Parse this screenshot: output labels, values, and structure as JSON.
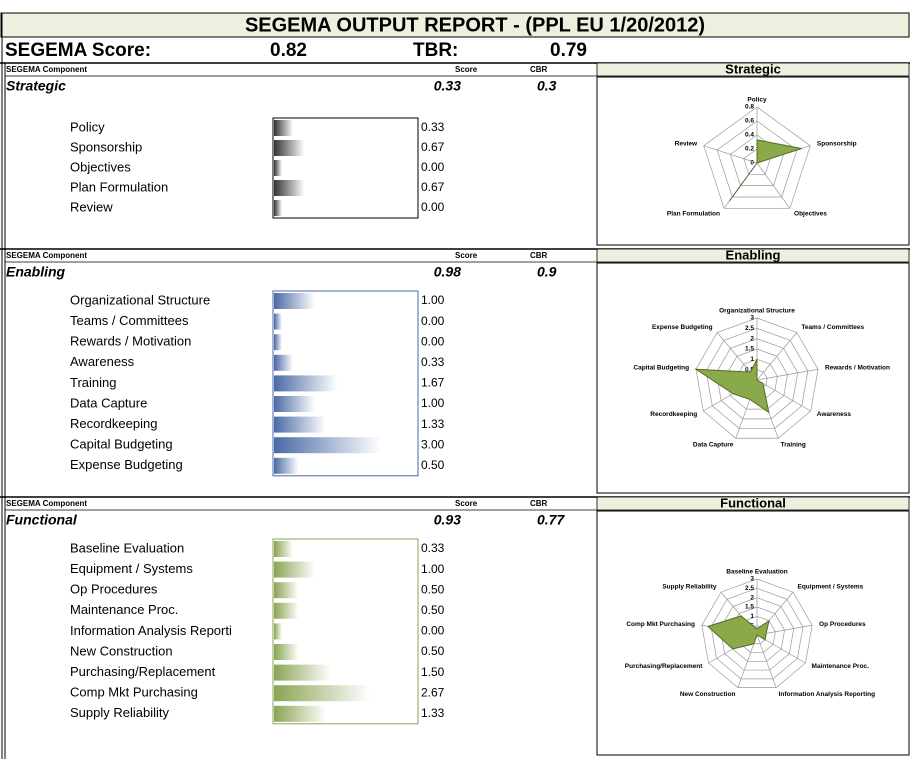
{
  "header": {
    "title": "SEGEMA OUTPUT REPORT - (PPL EU  1/20/2012)",
    "score_label": "SEGEMA Score:",
    "score": 0.82,
    "tbr_label": "TBR:",
    "tbr": 0.79
  },
  "sections": [
    {
      "col_component": "SEGEMA Component",
      "col_score": "Score",
      "col_cbr": "CBR",
      "name": "Strategic",
      "score": 0.33,
      "cbr": 0.3,
      "bar_color": "#333333",
      "border_color": "#000000",
      "labels": [
        "Policy",
        "Sponsorship",
        "Objectives",
        "Plan Formulation",
        "Review"
      ],
      "values": [
        0.33,
        0.67,
        0,
        0.67,
        0
      ],
      "value_labels": [
        "0.33",
        "0.67",
        "0.00",
        "0.67",
        "0.00"
      ],
      "radar": {
        "title": "Strategic",
        "color": "#8aaa4a",
        "labels": [
          "Policy",
          "Sponsorship",
          "Objectives",
          "Plan Formulation",
          "Review"
        ],
        "rlim": [
          0,
          0.8
        ],
        "rticks": [
          0,
          0.2,
          0.4,
          0.6,
          0.8
        ]
      }
    },
    {
      "col_component": "SEGEMA Component",
      "col_score": "Score",
      "col_cbr": "CBR",
      "name": "Enabling",
      "score": 0.98,
      "cbr": 0.9,
      "bar_color": "#4a6aa5",
      "border_color": "#4a6aa5",
      "labels": [
        "Organizational Structure",
        "Teams / Committees",
        "Rewards / Motivation",
        "Awareness",
        "Training",
        "Data Capture",
        "Recordkeeping",
        "Capital Budgeting",
        "Expense Budgeting"
      ],
      "values": [
        1,
        0,
        0,
        0.33,
        1.67,
        1,
        1.33,
        3,
        0.5
      ],
      "value_labels": [
        "1.00",
        "0.00",
        "0.00",
        "0.33",
        "1.67",
        "1.00",
        "1.33",
        "3.00",
        "0.50"
      ],
      "radar": {
        "title": "Enabling",
        "color": "#8aaa4a",
        "labels": [
          "Organizational Structure",
          "Teams / Committees",
          "Rewards / Motivation",
          "Awareness",
          "Training",
          "Data Capture",
          "Recordkeeping",
          "Capital Budgeting",
          "Expense Budgeting"
        ],
        "rlim": [
          0,
          3
        ],
        "rticks": [
          0,
          0.5,
          1,
          1.5,
          2,
          2.5,
          3
        ]
      }
    },
    {
      "col_component": "SEGEMA Component",
      "col_score": "Score",
      "col_cbr": "CBR",
      "name": "Functional",
      "score": 0.93,
      "cbr": 0.77,
      "bar_color": "#8aa453",
      "border_color": "#8aa453",
      "labels": [
        "Baseline Evaluation",
        "Equipment / Systems",
        "Op Procedures",
        "Maintenance Proc.",
        "Information Analysis Reporti",
        "New Construction",
        "Purchasing/Replacement",
        "Comp Mkt Purchasing",
        "Supply Reliability"
      ],
      "values": [
        0.33,
        1,
        0.5,
        0.5,
        0,
        0.5,
        1.5,
        2.67,
        1.33
      ],
      "value_labels": [
        "0.33",
        "1.00",
        "0.50",
        "0.50",
        "0.00",
        "0.50",
        "1.50",
        "2.67",
        "1.33"
      ],
      "radar": {
        "title": "Functional",
        "color": "#8aaa4a",
        "labels": [
          "Baseline Evaluation",
          "Equipment / Systems",
          "Op Procedures",
          "Maintenance Proc.",
          "Information Analysis Reporting",
          "New Construction",
          "Purchasing/Replacement",
          "Comp Mkt Purchasing",
          "Supply Reliability"
        ],
        "rlim": [
          0,
          3
        ],
        "rticks": [
          0,
          0.5,
          1,
          1.5,
          2,
          2.5,
          3
        ]
      }
    }
  ]
}
